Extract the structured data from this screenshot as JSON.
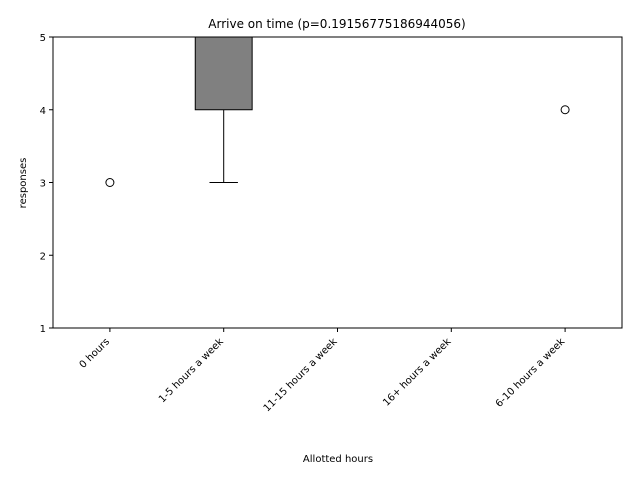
{
  "chart_data": {
    "type": "box",
    "title": "Arrive on time (p=0.19156775186944056)",
    "xlabel": "Allotted hours",
    "ylabel": "responses",
    "ylim": [
      1,
      5
    ],
    "yticks": [
      "1",
      "2",
      "3",
      "4",
      "5"
    ],
    "grid": false,
    "categories": [
      "0 hours",
      "1-5 hours a week",
      "11-15 hours a week",
      "16+ hours a week",
      "6-10 hours a week"
    ],
    "boxes": [
      {
        "q1": 5,
        "median": 5,
        "q3": 5,
        "whisker_low": 5,
        "whisker_high": 5,
        "outliers": [
          3
        ]
      },
      {
        "q1": 4,
        "median": 5,
        "q3": 5,
        "whisker_low": 3,
        "whisker_high": 5,
        "outliers": []
      },
      {
        "q1": 5,
        "median": 5,
        "q3": 5,
        "whisker_low": 5,
        "whisker_high": 5,
        "outliers": []
      },
      {
        "q1": 5,
        "median": 5,
        "q3": 5,
        "whisker_low": 5,
        "whisker_high": 5,
        "outliers": []
      },
      {
        "q1": 5,
        "median": 5,
        "q3": 5,
        "whisker_low": 5,
        "whisker_high": 5,
        "outliers": [
          4
        ]
      }
    ],
    "colors": {
      "box_fill": "#808080",
      "stroke": "#000000",
      "median": "#000000",
      "background": "#ffffff"
    }
  }
}
